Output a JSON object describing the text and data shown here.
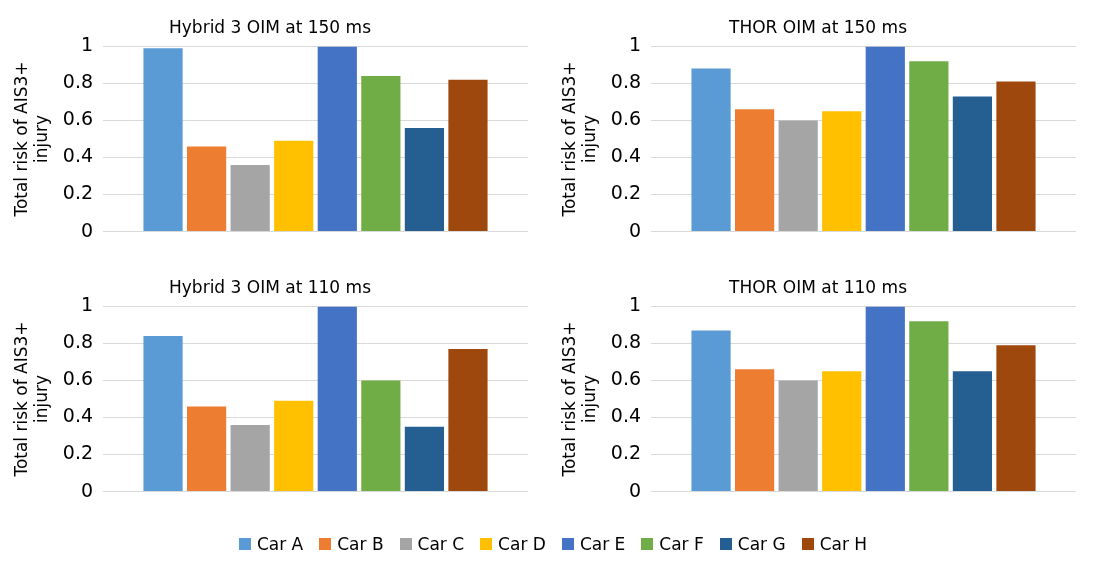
{
  "chart_data": [
    {
      "type": "bar",
      "title": "Hybrid 3 OIM at 150 ms",
      "ylabel": "Total risk of AIS3+ injury",
      "categories": [
        null
      ],
      "ylim": [
        0,
        1
      ],
      "yticks": [
        0,
        0.2,
        0.4,
        0.6,
        0.8,
        1
      ],
      "grid": "y",
      "legend": "bottom",
      "series": [
        {
          "name": "Car A",
          "color": "#5b9bd5",
          "values": [
            0.99
          ]
        },
        {
          "name": "Car B",
          "color": "#ed7d31",
          "values": [
            0.46
          ]
        },
        {
          "name": "Car C",
          "color": "#a5a5a5",
          "values": [
            0.36
          ]
        },
        {
          "name": "Car D",
          "color": "#ffc000",
          "values": [
            0.49
          ]
        },
        {
          "name": "Car E",
          "color": "#4472c4",
          "values": [
            1.0
          ]
        },
        {
          "name": "Car F",
          "color": "#70ad47",
          "values": [
            0.84
          ]
        },
        {
          "name": "Car G",
          "color": "#255e91",
          "values": [
            0.56
          ]
        },
        {
          "name": "Car H",
          "color": "#9e480e",
          "values": [
            0.82
          ]
        }
      ]
    },
    {
      "type": "bar",
      "title": "THOR OIM at 150 ms",
      "ylabel": "Total risk of AIS3+ injury",
      "categories": [
        null
      ],
      "ylim": [
        0,
        1
      ],
      "yticks": [
        0,
        0.2,
        0.4,
        0.6,
        0.8,
        1
      ],
      "grid": "y",
      "legend": "bottom",
      "series": [
        {
          "name": "Car A",
          "color": "#5b9bd5",
          "values": [
            0.88
          ]
        },
        {
          "name": "Car B",
          "color": "#ed7d31",
          "values": [
            0.66
          ]
        },
        {
          "name": "Car C",
          "color": "#a5a5a5",
          "values": [
            0.6
          ]
        },
        {
          "name": "Car D",
          "color": "#ffc000",
          "values": [
            0.65
          ]
        },
        {
          "name": "Car E",
          "color": "#4472c4",
          "values": [
            1.0
          ]
        },
        {
          "name": "Car F",
          "color": "#70ad47",
          "values": [
            0.92
          ]
        },
        {
          "name": "Car G",
          "color": "#255e91",
          "values": [
            0.73
          ]
        },
        {
          "name": "Car H",
          "color": "#9e480e",
          "values": [
            0.81
          ]
        }
      ]
    },
    {
      "type": "bar",
      "title": "Hybrid 3 OIM at 110 ms",
      "ylabel": "Total risk of AIS3+ injury",
      "categories": [
        null
      ],
      "ylim": [
        0,
        1
      ],
      "yticks": [
        0,
        0.2,
        0.4,
        0.6,
        0.8,
        1
      ],
      "grid": "y",
      "legend": "bottom",
      "series": [
        {
          "name": "Car A",
          "color": "#5b9bd5",
          "values": [
            0.84
          ]
        },
        {
          "name": "Car B",
          "color": "#ed7d31",
          "values": [
            0.46
          ]
        },
        {
          "name": "Car C",
          "color": "#a5a5a5",
          "values": [
            0.36
          ]
        },
        {
          "name": "Car D",
          "color": "#ffc000",
          "values": [
            0.49
          ]
        },
        {
          "name": "Car E",
          "color": "#4472c4",
          "values": [
            1.0
          ]
        },
        {
          "name": "Car F",
          "color": "#70ad47",
          "values": [
            0.6
          ]
        },
        {
          "name": "Car G",
          "color": "#255e91",
          "values": [
            0.35
          ]
        },
        {
          "name": "Car H",
          "color": "#9e480e",
          "values": [
            0.77
          ]
        }
      ]
    },
    {
      "type": "bar",
      "title": "THOR OIM at 110 ms",
      "ylabel": "Total risk of AIS3+ injury",
      "categories": [
        null
      ],
      "ylim": [
        0,
        1
      ],
      "yticks": [
        0,
        0.2,
        0.4,
        0.6,
        0.8,
        1
      ],
      "grid": "y",
      "legend": "bottom",
      "series": [
        {
          "name": "Car A",
          "color": "#5b9bd5",
          "values": [
            0.87
          ]
        },
        {
          "name": "Car B",
          "color": "#ed7d31",
          "values": [
            0.66
          ]
        },
        {
          "name": "Car C",
          "color": "#a5a5a5",
          "values": [
            0.6
          ]
        },
        {
          "name": "Car D",
          "color": "#ffc000",
          "values": [
            0.65
          ]
        },
        {
          "name": "Car E",
          "color": "#4472c4",
          "values": [
            1.0
          ]
        },
        {
          "name": "Car F",
          "color": "#70ad47",
          "values": [
            0.92
          ]
        },
        {
          "name": "Car G",
          "color": "#255e91",
          "values": [
            0.65
          ]
        },
        {
          "name": "Car H",
          "color": "#9e480e",
          "values": [
            0.79
          ]
        }
      ]
    }
  ]
}
